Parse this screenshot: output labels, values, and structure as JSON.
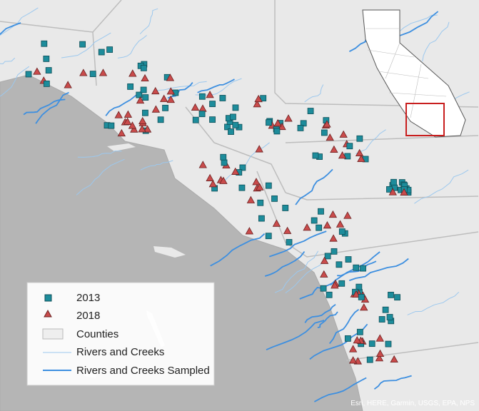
{
  "legend": {
    "items": [
      "2013",
      "2018",
      "Counties",
      "Rivers and Creeks",
      "Rivers and Creeks Sampled"
    ]
  },
  "attribution": "Esri, HERE, Garmin, USGS, EPA, NPS"
}
